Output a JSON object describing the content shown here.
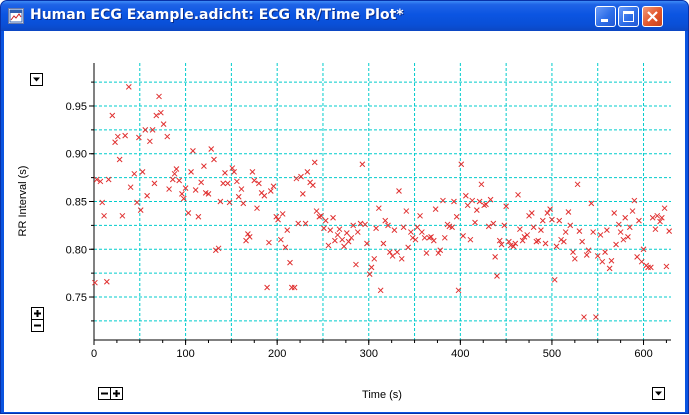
{
  "window": {
    "title": "Human ECG Example.adicht: ECG RR/Time Plot*",
    "app_icon": "chart-document-icon",
    "controls": [
      "minimize-icon",
      "maximize-icon",
      "close-icon"
    ]
  },
  "colors": {
    "titlebar": "#0a54e0",
    "grid": "#00cccc",
    "marker": "#e03030",
    "background": "#ffffff"
  },
  "icons": {
    "y_scale_menu": "dropdown-arrow-icon",
    "x_scale_menu": "dropdown-arrow-icon",
    "y_zoom_in": "plus-icon",
    "y_zoom_out": "minus-icon",
    "x_zoom_out": "minus-icon",
    "x_zoom_in": "plus-icon"
  },
  "chart_data": {
    "type": "scatter",
    "title": "",
    "xlabel": "Time (s)",
    "ylabel": "RR Interval (s)",
    "xlim": [
      0,
      630
    ],
    "ylim": [
      0.705,
      0.995
    ],
    "x_ticks": [
      0,
      100,
      200,
      300,
      400,
      500,
      600
    ],
    "x_tick_labels": [
      "0",
      "100",
      "200",
      "300",
      "400",
      "500",
      "600"
    ],
    "y_ticks": [
      0.75,
      0.8,
      0.85,
      0.9,
      0.95
    ],
    "y_tick_labels": [
      "0.75",
      "0.80",
      "0.85",
      "0.90",
      "0.95"
    ],
    "grid": true,
    "grid_style": "dashed",
    "marker": "x",
    "points": [
      [
        1,
        0.765
      ],
      [
        3,
        0.873
      ],
      [
        7,
        0.871
      ],
      [
        9,
        0.849
      ],
      [
        11,
        0.835
      ],
      [
        14,
        0.766
      ],
      [
        16,
        0.873
      ],
      [
        20,
        0.94
      ],
      [
        23,
        0.912
      ],
      [
        26,
        0.918
      ],
      [
        28,
        0.894
      ],
      [
        31,
        0.835
      ],
      [
        34,
        0.919
      ],
      [
        38,
        0.97
      ],
      [
        40,
        0.865
      ],
      [
        44,
        0.879
      ],
      [
        47,
        0.849
      ],
      [
        49,
        0.917
      ],
      [
        51,
        0.841
      ],
      [
        53,
        0.881
      ],
      [
        56,
        0.925
      ],
      [
        58,
        0.856
      ],
      [
        61,
        0.913
      ],
      [
        64,
        0.925
      ],
      [
        66,
        0.869
      ],
      [
        68,
        0.94
      ],
      [
        71,
        0.96
      ],
      [
        73,
        0.943
      ],
      [
        76,
        0.931
      ],
      [
        80,
        0.918
      ],
      [
        82,
        0.863
      ],
      [
        86,
        0.873
      ],
      [
        88,
        0.879
      ],
      [
        90,
        0.884
      ],
      [
        93,
        0.872
      ],
      [
        96,
        0.858
      ],
      [
        98,
        0.853
      ],
      [
        100,
        0.864
      ],
      [
        103,
        0.838
      ],
      [
        106,
        0.881
      ],
      [
        108,
        0.903
      ],
      [
        111,
        0.862
      ],
      [
        114,
        0.834
      ],
      [
        117,
        0.87
      ],
      [
        120,
        0.887
      ],
      [
        122,
        0.859
      ],
      [
        125,
        0.858
      ],
      [
        128,
        0.905
      ],
      [
        131,
        0.894
      ],
      [
        133,
        0.799
      ],
      [
        136,
        0.801
      ],
      [
        138,
        0.85
      ],
      [
        141,
        0.869
      ],
      [
        143,
        0.88
      ],
      [
        146,
        0.869
      ],
      [
        148,
        0.849
      ],
      [
        151,
        0.885
      ],
      [
        153,
        0.881
      ],
      [
        156,
        0.871
      ],
      [
        158,
        0.855
      ],
      [
        161,
        0.863
      ],
      [
        163,
        0.848
      ],
      [
        166,
        0.809
      ],
      [
        168,
        0.816
      ],
      [
        170,
        0.813
      ],
      [
        173,
        0.881
      ],
      [
        175,
        0.872
      ],
      [
        178,
        0.843
      ],
      [
        180,
        0.869
      ],
      [
        183,
        0.859
      ],
      [
        186,
        0.856
      ],
      [
        189,
        0.76
      ],
      [
        191,
        0.807
      ],
      [
        193,
        0.861
      ],
      [
        196,
        0.866
      ],
      [
        199,
        0.834
      ],
      [
        201,
        0.831
      ],
      [
        204,
        0.81
      ],
      [
        206,
        0.837
      ],
      [
        209,
        0.802
      ],
      [
        211,
        0.82
      ],
      [
        214,
        0.786
      ],
      [
        216,
        0.76
      ],
      [
        219,
        0.76
      ],
      [
        221,
        0.874
      ],
      [
        223,
        0.827
      ],
      [
        226,
        0.876
      ],
      [
        228,
        0.858
      ],
      [
        231,
        0.827
      ],
      [
        233,
        0.881
      ],
      [
        236,
        0.87
      ],
      [
        239,
        0.867
      ],
      [
        241,
        0.891
      ],
      [
        243,
        0.84
      ],
      [
        246,
        0.834
      ],
      [
        248,
        0.835
      ],
      [
        251,
        0.822
      ],
      [
        253,
        0.83
      ],
      [
        256,
        0.804
      ],
      [
        258,
        0.82
      ],
      [
        261,
        0.833
      ],
      [
        263,
        0.809
      ],
      [
        266,
        0.815
      ],
      [
        268,
        0.821
      ],
      [
        271,
        0.81
      ],
      [
        273,
        0.803
      ],
      [
        276,
        0.817
      ],
      [
        278,
        0.808
      ],
      [
        281,
        0.812
      ],
      [
        283,
        0.825
      ],
      [
        286,
        0.784
      ],
      [
        288,
        0.818
      ],
      [
        291,
        0.827
      ],
      [
        293,
        0.889
      ],
      [
        296,
        0.826
      ],
      [
        298,
        0.806
      ],
      [
        301,
        0.774
      ],
      [
        303,
        0.781
      ],
      [
        306,
        0.79
      ],
      [
        308,
        0.822
      ],
      [
        311,
        0.843
      ],
      [
        313,
        0.757
      ],
      [
        316,
        0.806
      ],
      [
        318,
        0.83
      ],
      [
        321,
        0.825
      ],
      [
        323,
        0.797
      ],
      [
        326,
        0.793
      ],
      [
        328,
        0.82
      ],
      [
        331,
        0.797
      ],
      [
        333,
        0.861
      ],
      [
        336,
        0.79
      ],
      [
        338,
        0.823
      ],
      [
        341,
        0.84
      ],
      [
        343,
        0.802
      ],
      [
        346,
        0.818
      ],
      [
        348,
        0.812
      ],
      [
        351,
        0.81
      ],
      [
        353,
        0.823
      ],
      [
        356,
        0.835
      ],
      [
        358,
        0.818
      ],
      [
        361,
        0.812
      ],
      [
        363,
        0.796
      ],
      [
        366,
        0.812
      ],
      [
        368,
        0.813
      ],
      [
        371,
        0.809
      ],
      [
        373,
        0.842
      ],
      [
        376,
        0.796
      ],
      [
        378,
        0.799
      ],
      [
        381,
        0.851
      ],
      [
        383,
        0.812
      ],
      [
        386,
        0.826
      ],
      [
        388,
        0.824
      ],
      [
        391,
        0.823
      ],
      [
        393,
        0.85
      ],
      [
        396,
        0.834
      ],
      [
        398,
        0.757
      ],
      [
        401,
        0.889
      ],
      [
        403,
        0.814
      ],
      [
        406,
        0.856
      ],
      [
        408,
        0.846
      ],
      [
        411,
        0.81
      ],
      [
        413,
        0.851
      ],
      [
        416,
        0.828
      ],
      [
        418,
        0.841
      ],
      [
        421,
        0.85
      ],
      [
        423,
        0.868
      ],
      [
        426,
        0.846
      ],
      [
        428,
        0.847
      ],
      [
        431,
        0.824
      ],
      [
        433,
        0.852
      ],
      [
        436,
        0.827
      ],
      [
        438,
        0.792
      ],
      [
        440,
        0.772
      ],
      [
        443,
        0.809
      ],
      [
        445,
        0.805
      ],
      [
        448,
        0.825
      ],
      [
        450,
        0.845
      ],
      [
        453,
        0.808
      ],
      [
        455,
        0.804
      ],
      [
        458,
        0.803
      ],
      [
        460,
        0.806
      ],
      [
        463,
        0.857
      ],
      [
        465,
        0.821
      ],
      [
        468,
        0.809
      ],
      [
        470,
        0.813
      ],
      [
        473,
        0.815
      ],
      [
        475,
        0.835
      ],
      [
        478,
        0.838
      ],
      [
        480,
        0.823
      ],
      [
        483,
        0.808
      ],
      [
        485,
        0.809
      ],
      [
        488,
        0.82
      ],
      [
        490,
        0.83
      ],
      [
        493,
        0.806
      ],
      [
        495,
        0.838
      ],
      [
        498,
        0.842
      ],
      [
        500,
        0.831
      ],
      [
        503,
        0.768
      ],
      [
        505,
        0.803
      ],
      [
        508,
        0.83
      ],
      [
        510,
        0.81
      ],
      [
        513,
        0.808
      ],
      [
        515,
        0.818
      ],
      [
        518,
        0.839
      ],
      [
        520,
        0.825
      ],
      [
        523,
        0.797
      ],
      [
        525,
        0.79
      ],
      [
        528,
        0.868
      ],
      [
        530,
        0.819
      ],
      [
        533,
        0.808
      ],
      [
        535,
        0.729
      ],
      [
        538,
        0.794
      ],
      [
        540,
        0.799
      ],
      [
        543,
        0.848
      ],
      [
        545,
        0.818
      ],
      [
        548,
        0.729
      ],
      [
        550,
        0.793
      ],
      [
        553,
        0.815
      ],
      [
        555,
        0.787
      ],
      [
        558,
        0.797
      ],
      [
        560,
        0.82
      ],
      [
        563,
        0.78
      ],
      [
        565,
        0.788
      ],
      [
        568,
        0.838
      ],
      [
        570,
        0.805
      ],
      [
        573,
        0.826
      ],
      [
        575,
        0.818
      ],
      [
        578,
        0.81
      ],
      [
        580,
        0.833
      ],
      [
        583,
        0.813
      ],
      [
        585,
        0.823
      ],
      [
        588,
        0.84
      ],
      [
        590,
        0.851
      ],
      [
        593,
        0.792
      ],
      [
        595,
        0.83
      ],
      [
        598,
        0.787
      ],
      [
        600,
        0.8
      ],
      [
        603,
        0.783
      ],
      [
        605,
        0.781
      ],
      [
        608,
        0.781
      ],
      [
        610,
        0.833
      ],
      [
        613,
        0.821
      ],
      [
        615,
        0.835
      ],
      [
        618,
        0.829
      ],
      [
        620,
        0.833
      ],
      [
        623,
        0.843
      ],
      [
        625,
        0.782
      ],
      [
        628,
        0.819
      ]
    ]
  }
}
